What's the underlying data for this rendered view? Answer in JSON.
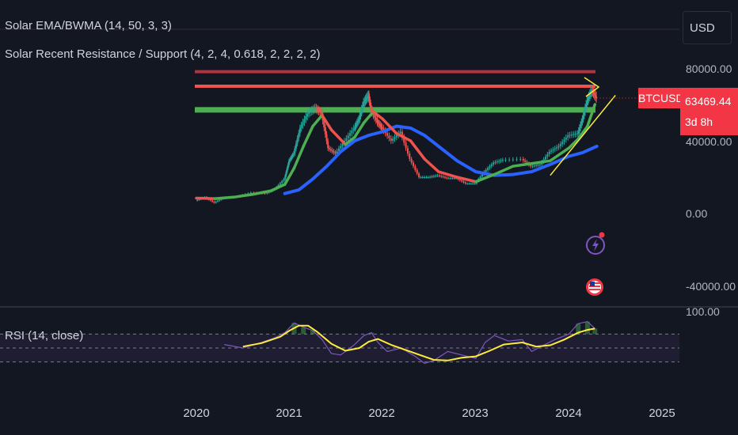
{
  "indicators": {
    "ema": "Solar EMA/BWMA (14, 50, 3, 3)",
    "support": "Solar Recent Resistance / Support (4, 2, 4, 0.618, 2, 2, 2, 2)",
    "rsi": "RSI (14, close)"
  },
  "currency_button": "USD",
  "price_axis_ticks": [
    "80000.00",
    "40000.00",
    "0.00",
    "-40000.00"
  ],
  "rsi_axis_ticks": [
    "100.00"
  ],
  "symbol_tag": "BTCUSD",
  "price_tag": {
    "price": "63469.44",
    "countdown": "3d 8h"
  },
  "colors": {
    "background": "#131722",
    "resistance_dark": "#b2323f",
    "resistance": "#ef5350",
    "support": "#4caf50",
    "ema_fast_up": "#4caf50",
    "ema_fast_down": "#ef5350",
    "bwma": "#2962ff",
    "trendline": "#ffeb3b",
    "rsi_line": "#7e57c2",
    "rsi_ma": "#ffeb3b",
    "price_tag": "#f23645"
  },
  "icons": {
    "flash": "flash-icon",
    "flag": "us-flag-icon"
  },
  "chart_data": {
    "type": "line",
    "x_ticks": [
      "2020",
      "2021",
      "2022",
      "2023",
      "2024",
      "2025"
    ],
    "y_ticks": [
      80000,
      40000,
      0,
      -40000
    ],
    "ylim": [
      -50000,
      95000
    ],
    "xlim": [
      2018.2,
      2025.2
    ],
    "last_price": 63469.44,
    "levels": [
      {
        "name": "resistance-upper",
        "value": 78000
      },
      {
        "name": "resistance",
        "value": 70000
      },
      {
        "name": "support",
        "value": 57000
      }
    ],
    "series": [
      {
        "key": "price",
        "x": [
          2020.0,
          2020.1,
          2020.2,
          2020.3,
          2020.45,
          2020.6,
          2020.75,
          2020.85,
          2020.95,
          2021.0,
          2021.05,
          2021.12,
          2021.2,
          2021.28,
          2021.35,
          2021.42,
          2021.5,
          2021.6,
          2021.7,
          2021.75,
          2021.8,
          2021.85,
          2021.88,
          2021.95,
          2022.0,
          2022.1,
          2022.2,
          2022.3,
          2022.4,
          2022.5,
          2022.6,
          2022.7,
          2022.8,
          2022.9,
          2023.0,
          2023.1,
          2023.2,
          2023.3,
          2023.5,
          2023.6,
          2023.7,
          2023.8,
          2023.9,
          2024.0,
          2024.1,
          2024.15,
          2024.2,
          2024.25,
          2024.3
        ],
        "y": [
          7200,
          9000,
          6000,
          8800,
          9300,
          11500,
          11000,
          13500,
          19000,
          29000,
          33000,
          47000,
          55000,
          58000,
          55000,
          36000,
          33000,
          40000,
          47000,
          52000,
          61000,
          65000,
          57000,
          50000,
          47000,
          40000,
          45000,
          30000,
          20000,
          20000,
          21000,
          19500,
          19500,
          16500,
          16500,
          23000,
          28000,
          29500,
          30000,
          26000,
          27000,
          34000,
          37000,
          43000,
          44000,
          52000,
          62000,
          68000,
          63469
        ]
      },
      {
        "key": "ema-fast",
        "x": [
          2020.0,
          2020.2,
          2020.4,
          2020.6,
          2020.8,
          2020.95,
          2021.05,
          2021.15,
          2021.25,
          2021.35,
          2021.45,
          2021.6,
          2021.7,
          2021.8,
          2021.9,
          2022.0,
          2022.15,
          2022.3,
          2022.45,
          2022.6,
          2022.8,
          2023.0,
          2023.2,
          2023.4,
          2023.6,
          2023.8,
          2024.0,
          2024.1,
          2024.2,
          2024.28
        ],
        "y": [
          8500,
          8200,
          9000,
          10500,
          12500,
          16000,
          25000,
          37000,
          48000,
          54000,
          46000,
          38000,
          42000,
          50000,
          56000,
          52000,
          44000,
          40000,
          30000,
          23000,
          20000,
          17500,
          21500,
          26000,
          27500,
          29000,
          36000,
          41000,
          48000,
          60000
        ]
      },
      {
        "key": "bwma",
        "x": [
          2020.95,
          2021.1,
          2021.25,
          2021.4,
          2021.55,
          2021.7,
          2021.85,
          2022.0,
          2022.15,
          2022.3,
          2022.45,
          2022.6,
          2022.8,
          2023.0,
          2023.2,
          2023.4,
          2023.6,
          2023.8,
          2024.0,
          2024.15,
          2024.3
        ],
        "y": [
          11000,
          13000,
          19000,
          26000,
          34000,
          40000,
          43000,
          45000,
          48000,
          47000,
          43000,
          37000,
          29000,
          23000,
          21000,
          21500,
          23000,
          27000,
          31500,
          33500,
          37000
        ]
      },
      {
        "key": "trend",
        "x": [
          2023.8,
          2024.5
        ],
        "y": [
          21000,
          65000
        ]
      }
    ],
    "rsi": {
      "ylim": [
        0,
        100
      ],
      "bands": [
        70,
        50,
        30
      ],
      "x": [
        2020.3,
        2020.5,
        2020.7,
        2020.85,
        2020.95,
        2021.05,
        2021.15,
        2021.25,
        2021.35,
        2021.45,
        2021.55,
        2021.7,
        2021.8,
        2021.88,
        2021.95,
        2022.05,
        2022.2,
        2022.35,
        2022.45,
        2022.55,
        2022.7,
        2022.85,
        2023.0,
        2023.1,
        2023.2,
        2023.35,
        2023.5,
        2023.6,
        2023.7,
        2023.85,
        2024.0,
        2024.1,
        2024.2,
        2024.28
      ],
      "values": [
        55,
        50,
        58,
        65,
        72,
        86,
        80,
        75,
        62,
        42,
        40,
        55,
        68,
        72,
        58,
        45,
        50,
        38,
        28,
        32,
        45,
        40,
        35,
        58,
        68,
        60,
        62,
        45,
        52,
        62,
        70,
        85,
        88,
        78
      ],
      "ma_x": [
        2020.5,
        2020.7,
        2020.9,
        2021.0,
        2021.1,
        2021.2,
        2021.3,
        2021.45,
        2021.6,
        2021.75,
        2021.85,
        2021.95,
        2022.1,
        2022.25,
        2022.4,
        2022.55,
        2022.7,
        2022.85,
        2023.0,
        2023.15,
        2023.3,
        2023.5,
        2023.65,
        2023.8,
        2023.95,
        2024.1,
        2024.2,
        2024.28
      ],
      "ma": [
        52,
        57,
        66,
        75,
        82,
        82,
        73,
        56,
        46,
        50,
        59,
        63,
        54,
        47,
        40,
        33,
        32,
        36,
        38,
        46,
        55,
        58,
        52,
        54,
        62,
        72,
        76,
        78
      ]
    }
  }
}
